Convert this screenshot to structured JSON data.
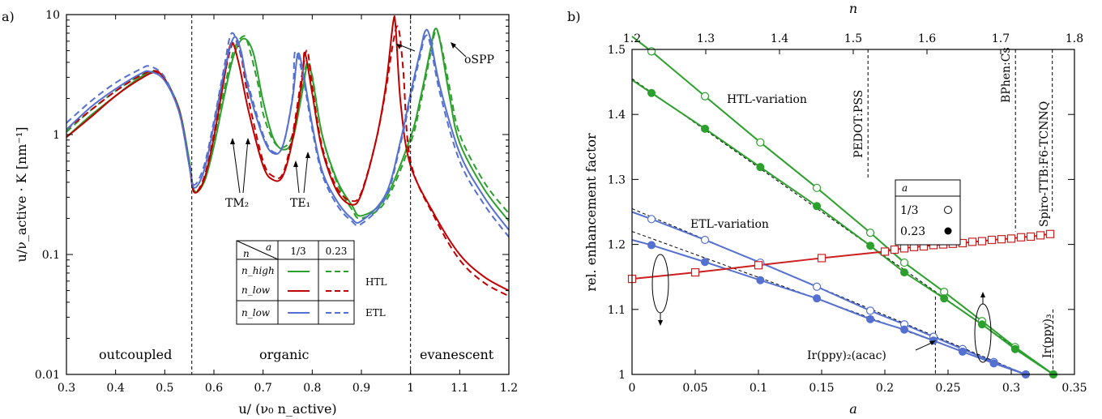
{
  "chart_data": [
    {
      "type": "line",
      "panel_label": "a)",
      "xlabel": "u/ (ν₀ n_active)",
      "ylabel": "u/ν_active · K  [nm⁻¹]",
      "xlim": [
        0.3,
        1.2
      ],
      "ylim": [
        0.01,
        10
      ],
      "yscale": "log",
      "x_ticks": [
        "0.3",
        "0.4",
        "0.5",
        "0.6",
        "0.7",
        "0.8",
        "0.9",
        "1",
        "1.1",
        "1.2"
      ],
      "y_ticks": [
        "0.01",
        "0.1",
        "1",
        "10"
      ],
      "region_labels": [
        "outcoupled",
        "organic",
        "evanescent"
      ],
      "region_boundaries": [
        0.555,
        1.0
      ],
      "annotations": [
        "TM₂",
        "TE₁",
        "oSPP"
      ],
      "legend": {
        "header_row": [
          "n",
          "a",
          "1/3",
          "0.23"
        ],
        "rows": [
          "n_high",
          "n_low",
          "n_low"
        ],
        "groups": [
          "HTL",
          "ETL"
        ]
      },
      "series": [
        {
          "name": "HTL n_high, a=1/3",
          "color": "#2ca02c",
          "dash": false,
          "x": [
            0.3,
            0.35,
            0.4,
            0.45,
            0.48,
            0.5,
            0.53,
            0.55,
            0.56,
            0.58,
            0.6,
            0.62,
            0.64,
            0.66,
            0.68,
            0.7,
            0.72,
            0.74,
            0.76,
            0.78,
            0.79,
            0.8,
            0.82,
            0.85,
            0.88,
            0.9,
            0.95,
            1.0,
            1.02,
            1.04,
            1.05,
            1.06,
            1.08,
            1.1,
            1.15,
            1.2
          ],
          "y": [
            0.95,
            1.45,
            2.1,
            3.0,
            3.3,
            2.9,
            1.6,
            0.6,
            0.34,
            0.4,
            0.8,
            2.0,
            4.5,
            6.3,
            4.8,
            1.9,
            0.95,
            0.75,
            0.9,
            2.3,
            3.8,
            3.0,
            1.0,
            0.42,
            0.26,
            0.21,
            0.3,
            0.95,
            2.0,
            5.0,
            7.6,
            6.0,
            2.0,
            0.85,
            0.35,
            0.19
          ]
        },
        {
          "name": "HTL n_high, a=0.23",
          "color": "#2ca02c",
          "dash": true,
          "x": [
            0.3,
            0.35,
            0.4,
            0.45,
            0.48,
            0.5,
            0.53,
            0.55,
            0.56,
            0.58,
            0.6,
            0.62,
            0.64,
            0.66,
            0.67,
            0.69,
            0.7,
            0.72,
            0.74,
            0.76,
            0.78,
            0.79,
            0.8,
            0.82,
            0.85,
            0.88,
            0.9,
            0.95,
            1.0,
            1.02,
            1.04,
            1.05,
            1.06,
            1.08,
            1.1,
            1.15,
            1.2
          ],
          "y": [
            1.05,
            1.6,
            2.3,
            3.1,
            3.35,
            2.9,
            1.55,
            0.6,
            0.34,
            0.42,
            0.9,
            2.3,
            5.0,
            6.6,
            5.6,
            2.6,
            1.5,
            0.9,
            0.78,
            1.0,
            2.6,
            4.0,
            3.1,
            1.0,
            0.4,
            0.24,
            0.2,
            0.28,
            0.85,
            1.8,
            4.6,
            7.1,
            6.2,
            2.4,
            1.0,
            0.4,
            0.22
          ]
        },
        {
          "name": "HTL n_low, a=1/3",
          "color": "#c00000",
          "dash": false,
          "x": [
            0.3,
            0.35,
            0.4,
            0.45,
            0.48,
            0.5,
            0.53,
            0.55,
            0.56,
            0.58,
            0.6,
            0.62,
            0.635,
            0.65,
            0.67,
            0.7,
            0.72,
            0.74,
            0.76,
            0.78,
            0.785,
            0.8,
            0.82,
            0.85,
            0.88,
            0.9,
            0.93,
            0.95,
            0.965,
            0.97,
            0.98,
            1.0,
            1.05,
            1.1,
            1.15,
            1.2
          ],
          "y": [
            0.95,
            1.4,
            2.1,
            2.9,
            3.3,
            2.9,
            1.55,
            0.55,
            0.33,
            0.42,
            0.95,
            2.8,
            5.8,
            4.0,
            1.6,
            0.55,
            0.42,
            0.45,
            0.9,
            3.0,
            4.8,
            2.2,
            0.75,
            0.34,
            0.26,
            0.32,
            0.9,
            2.6,
            8.8,
            7.5,
            1.8,
            0.55,
            0.21,
            0.1,
            0.065,
            0.05
          ]
        },
        {
          "name": "HTL n_low, a=0.23",
          "color": "#c00000",
          "dash": true,
          "x": [
            0.3,
            0.35,
            0.4,
            0.45,
            0.48,
            0.5,
            0.53,
            0.55,
            0.56,
            0.58,
            0.6,
            0.62,
            0.64,
            0.655,
            0.67,
            0.7,
            0.72,
            0.74,
            0.76,
            0.78,
            0.79,
            0.8,
            0.82,
            0.85,
            0.88,
            0.9,
            0.93,
            0.95,
            0.965,
            0.975,
            0.985,
            1.0,
            1.05,
            1.1,
            1.15,
            1.2
          ],
          "y": [
            1.1,
            1.6,
            2.3,
            3.1,
            3.4,
            2.9,
            1.5,
            0.55,
            0.33,
            0.44,
            1.0,
            2.9,
            6.0,
            4.5,
            2.0,
            0.6,
            0.45,
            0.47,
            1.0,
            3.3,
            5.0,
            2.5,
            0.8,
            0.36,
            0.28,
            0.33,
            0.9,
            2.4,
            6.0,
            7.8,
            3.5,
            0.6,
            0.2,
            0.09,
            0.058,
            0.045
          ]
        },
        {
          "name": "ETL n_low, a=1/3",
          "color": "#5470d0",
          "dash": false,
          "x": [
            0.3,
            0.35,
            0.4,
            0.45,
            0.47,
            0.5,
            0.53,
            0.55,
            0.56,
            0.58,
            0.6,
            0.62,
            0.64,
            0.655,
            0.67,
            0.7,
            0.72,
            0.74,
            0.76,
            0.77,
            0.78,
            0.8,
            0.82,
            0.85,
            0.88,
            0.9,
            0.95,
            0.98,
            1.0,
            1.02,
            1.03,
            1.04,
            1.06,
            1.1,
            1.15,
            1.2
          ],
          "y": [
            1.1,
            1.7,
            2.4,
            3.2,
            3.35,
            2.8,
            1.5,
            0.55,
            0.36,
            0.5,
            1.2,
            3.2,
            6.4,
            5.0,
            2.4,
            0.95,
            0.7,
            0.8,
            2.0,
            4.6,
            3.6,
            1.2,
            0.5,
            0.28,
            0.2,
            0.19,
            0.32,
            0.9,
            2.2,
            5.0,
            7.3,
            6.4,
            2.5,
            0.7,
            0.3,
            0.16
          ]
        },
        {
          "name": "ETL n_low, a=0.23",
          "color": "#5470d0",
          "dash": true,
          "x": [
            0.3,
            0.35,
            0.4,
            0.45,
            0.47,
            0.5,
            0.53,
            0.55,
            0.56,
            0.58,
            0.6,
            0.62,
            0.635,
            0.65,
            0.67,
            0.7,
            0.72,
            0.74,
            0.76,
            0.765,
            0.78,
            0.8,
            0.82,
            0.85,
            0.88,
            0.9,
            0.95,
            0.98,
            1.0,
            1.02,
            1.03,
            1.04,
            1.06,
            1.1,
            1.15,
            1.2
          ],
          "y": [
            1.25,
            1.9,
            2.7,
            3.5,
            3.7,
            3.0,
            1.5,
            0.55,
            0.38,
            0.55,
            1.3,
            3.5,
            6.9,
            5.4,
            2.6,
            1.0,
            0.72,
            0.8,
            2.1,
            4.9,
            3.2,
            1.1,
            0.47,
            0.26,
            0.19,
            0.18,
            0.3,
            0.85,
            2.0,
            4.6,
            6.6,
            5.7,
            2.2,
            0.6,
            0.26,
            0.14
          ]
        }
      ]
    },
    {
      "type": "line",
      "panel_label": "b)",
      "xlabel": "a",
      "ylabel": "rel. enhancement factor",
      "x2label": "n",
      "xlim": [
        0,
        0.35
      ],
      "ylim": [
        1,
        1.5
      ],
      "x2lim": [
        1.2,
        1.8
      ],
      "x_ticks": [
        "0",
        "0.05",
        "0.1",
        "0.15",
        "0.2",
        "0.25",
        "0.3",
        "0.35"
      ],
      "y_ticks": [
        "1",
        "1.1",
        "1.2",
        "1.3",
        "1.4",
        "1.5"
      ],
      "x2_ticks": [
        "1.2",
        "1.3",
        "1.4",
        "1.5",
        "1.6",
        "1.7",
        "1.8"
      ],
      "text_labels": {
        "htl": "HTL-variation",
        "etl": "ETL-variation",
        "pedot": "PEDOT:PSS",
        "bphen": "BPhen:Cs",
        "spiro": "Spiro-TTB:F6-TCNNQ",
        "irppy3": "Ir(ppy)₃",
        "irppy2": "Ir(ppy)₂(acac)"
      },
      "material_lines": {
        "pedot_n": 1.52,
        "bphen_n": 1.72,
        "spiro_n": 1.77,
        "irppy3_a": 0.333,
        "irppy2_a": 0.24
      },
      "legend": {
        "title": "a",
        "entries": [
          "1/3",
          "0.23"
        ]
      },
      "series": [
        {
          "name": "HTL a=1/3",
          "color": "#2ca02c",
          "marker": "open-circle",
          "x": [
            0.0154,
            0.0577,
            0.1015,
            0.1462,
            0.1885,
            0.2154,
            0.2469,
            0.2769,
            0.3031,
            0.3333
          ],
          "y": [
            1.497,
            1.428,
            1.357,
            1.287,
            1.218,
            1.172,
            1.127,
            1.082,
            1.042,
            1.0
          ]
        },
        {
          "name": "HTL a=0.23",
          "color": "#2ca02c",
          "marker": "filled-circle",
          "x": [
            0.0154,
            0.0577,
            0.1015,
            0.1462,
            0.1885,
            0.2154,
            0.2469,
            0.2769,
            0.3031,
            0.3333
          ],
          "y": [
            1.433,
            1.378,
            1.319,
            1.259,
            1.198,
            1.157,
            1.117,
            1.077,
            1.039,
            1.0
          ]
        },
        {
          "name": "ETL a=1/3",
          "color": "#5470d0",
          "marker": "open-circle",
          "x": [
            0.0154,
            0.0577,
            0.1015,
            0.1462,
            0.1885,
            0.2154,
            0.2385,
            0.2615,
            0.2862,
            0.3115
          ],
          "y": [
            1.239,
            1.207,
            1.172,
            1.135,
            1.098,
            1.077,
            1.058,
            1.039,
            1.019,
            1.0
          ]
        },
        {
          "name": "ETL a=0.23",
          "color": "#5470d0",
          "marker": "filled-circle",
          "x": [
            0.0154,
            0.0577,
            0.1015,
            0.1462,
            0.1885,
            0.2154,
            0.2385,
            0.2615,
            0.2862,
            0.3115
          ],
          "y": [
            1.199,
            1.173,
            1.145,
            1.117,
            1.085,
            1.069,
            1.052,
            1.035,
            1.017,
            1.0
          ]
        },
        {
          "name": "",
          "color": "#cc2020",
          "marker": "open-square",
          "x": [
            0,
            0.05,
            0.1,
            0.15,
            0.2,
            0.2077,
            0.2154,
            0.2231,
            0.2308,
            0.2385,
            0.2462,
            0.2538,
            0.2615,
            0.2692,
            0.2769,
            0.2846,
            0.2923,
            0.3,
            0.3077,
            0.3154,
            0.3231,
            0.3308
          ],
          "y": [
            1.147,
            1.157,
            1.168,
            1.179,
            1.189,
            1.192,
            1.194,
            1.196,
            1.197,
            1.199,
            1.2,
            1.201,
            1.202,
            1.204,
            1.205,
            1.207,
            1.208,
            1.209,
            1.211,
            1.212,
            1.214,
            1.216
          ]
        }
      ]
    }
  ]
}
